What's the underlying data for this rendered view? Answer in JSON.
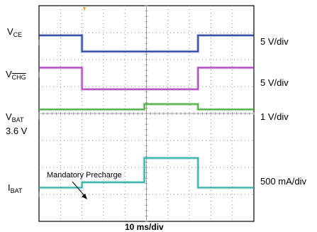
{
  "colors": {
    "vce": "#1f3a9b",
    "vchg": "#a63fb6",
    "vbat": "#46a83a",
    "ibat": "#29aba4",
    "grid": "#8c8c8c",
    "trigger": "#f0a030"
  },
  "chart_data": {
    "type": "line",
    "x_axis": {
      "divisions": 10,
      "label": "10 ms/div"
    },
    "y_axis": {
      "divisions": 8
    },
    "grid": true,
    "transitions_div": [
      2.0,
      4.9,
      7.4
    ],
    "series": [
      {
        "id": "vce",
        "name_main": "V",
        "name_sub": "CE",
        "overline": false,
        "scale": "5 V/div",
        "levels_div": [
          6.9,
          6.3,
          6.3,
          6.9
        ]
      },
      {
        "id": "vchg",
        "name_main": "V",
        "name_sub": "CHG",
        "overline": true,
        "scale": "5 V/div",
        "levels_div": [
          5.7,
          4.9,
          4.9,
          5.7
        ]
      },
      {
        "id": "vbat",
        "name_main": "V",
        "name_sub": "BAT",
        "overline": false,
        "extra": "3.6 V",
        "scale": "1 V/div",
        "levels_div": [
          4.15,
          4.15,
          4.35,
          4.15
        ]
      },
      {
        "id": "ibat",
        "name_main": "I",
        "name_sub": "BAT",
        "overline": false,
        "scale": "500 mA/div",
        "levels_div": [
          1.25,
          1.45,
          2.35,
          1.25
        ]
      }
    ],
    "annotation": "Mandatory Precharge"
  }
}
